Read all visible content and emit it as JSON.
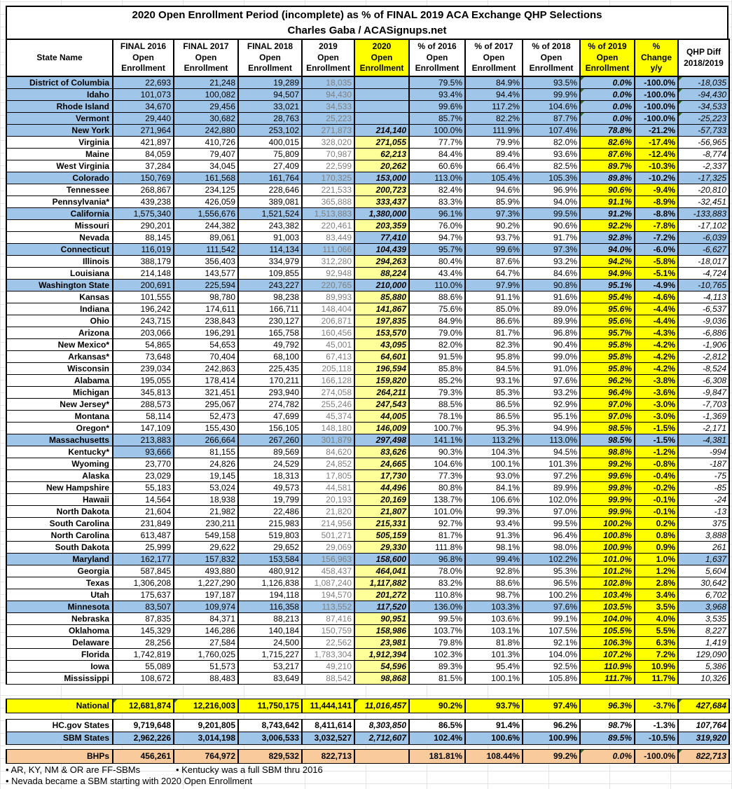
{
  "title": {
    "line1": "2020 Open Enrollment Period (incomplete) as % of FINAL 2019 ACA Exchange QHP Selections",
    "line2": "Charles Gaba / ACASignups.net"
  },
  "colors": {
    "sbm_blue": "#9FC5E8",
    "highlight_yellow": "#FFFF00",
    "light_yellow": "#FFFF99",
    "bhp_orange": "#F9CB9C",
    "error_triangle_green": "#2E6B1E",
    "muted_2019_text": "#7F7F7F"
  },
  "chart_data": {
    "type": "table",
    "columns": [
      {
        "label": "State Name",
        "hl": false
      },
      {
        "label": "FINAL 2016\nOpen\nEnrollment",
        "hl": false
      },
      {
        "label": "FINAL 2017\nOpen\nEnrollment",
        "hl": false
      },
      {
        "label": "FINAL 2018\nOpen\nEnrollment",
        "hl": false
      },
      {
        "label": "2019\nOpen\nEnrollment",
        "hl": false
      },
      {
        "label": "2020\nOpen\nEnrollment",
        "hl": true
      },
      {
        "label": "% of 2016\nOpen\nEnrollment",
        "hl": false
      },
      {
        "label": "% of 2017\nOpen\nEnrollment",
        "hl": false
      },
      {
        "label": "% of 2018\nOpen\nEnrollment",
        "hl": false
      },
      {
        "label": "% of 2019\nOpen\nEnrollment",
        "hl": true
      },
      {
        "label": "%\nChange\ny/y",
        "hl": true
      },
      {
        "label": "QHP Diff\n2018/2019",
        "hl": false
      }
    ],
    "rows": [
      {
        "state": "District of Columbia",
        "t": "b",
        "v": [
          "22,693",
          "21,248",
          "19,289",
          "18,035",
          "",
          "79.5%",
          "84.9%",
          "93.5%",
          "0.0%",
          "-100.0%",
          "-18,035"
        ],
        "tri": [
          8,
          10
        ]
      },
      {
        "state": "Idaho",
        "t": "b",
        "v": [
          "101,073",
          "100,082",
          "94,507",
          "94,430",
          "",
          "93.4%",
          "94.4%",
          "99.9%",
          "0.0%",
          "-100.0%",
          "-94,430"
        ],
        "tri": [
          8,
          10
        ]
      },
      {
        "state": "Rhode Island",
        "t": "b",
        "v": [
          "34,670",
          "29,456",
          "33,021",
          "34,533",
          "",
          "99.6%",
          "117.2%",
          "104.6%",
          "0.0%",
          "-100.0%",
          "-34,533"
        ],
        "tri": [
          8,
          10
        ]
      },
      {
        "state": "Vermont",
        "t": "b",
        "v": [
          "29,440",
          "30,682",
          "28,763",
          "25,223",
          "",
          "85.7%",
          "82.2%",
          "87.7%",
          "0.0%",
          "-100.0%",
          "-25,223"
        ],
        "tri": [
          8,
          10
        ]
      },
      {
        "state": "New York",
        "t": "b",
        "v": [
          "271,964",
          "242,880",
          "253,102",
          "271,873",
          "214,140",
          "100.0%",
          "111.9%",
          "107.4%",
          "78.8%",
          "-21.2%",
          "-57,733"
        ]
      },
      {
        "state": "Virginia",
        "t": "w",
        "v": [
          "421,897",
          "410,726",
          "400,015",
          "328,020",
          "271,055",
          "77.7%",
          "79.9%",
          "82.0%",
          "82.6%",
          "-17.4%",
          "-56,965"
        ]
      },
      {
        "state": "Maine",
        "t": "w",
        "v": [
          "84,059",
          "79,407",
          "75,809",
          "70,987",
          "62,213",
          "84.4%",
          "89.4%",
          "93.6%",
          "87.6%",
          "-12.4%",
          "-8,774"
        ]
      },
      {
        "state": "West Virginia",
        "t": "w",
        "v": [
          "37,284",
          "34,045",
          "27,409",
          "22,599",
          "20,262",
          "60.6%",
          "66.4%",
          "82.5%",
          "89.7%",
          "-10.3%",
          "-2,337"
        ]
      },
      {
        "state": "Colorado",
        "t": "b",
        "v": [
          "150,769",
          "161,568",
          "161,764",
          "170,325",
          "153,000",
          "113.0%",
          "105.4%",
          "105.3%",
          "89.8%",
          "-10.2%",
          "-17,325"
        ]
      },
      {
        "state": "Tennessee",
        "t": "w",
        "v": [
          "268,867",
          "234,125",
          "228,646",
          "221,533",
          "200,723",
          "82.4%",
          "94.6%",
          "96.9%",
          "90.6%",
          "-9.4%",
          "-20,810"
        ]
      },
      {
        "state": "Pennsylvania*",
        "t": "w",
        "v": [
          "439,238",
          "426,059",
          "389,081",
          "365,888",
          "333,437",
          "83.3%",
          "85.9%",
          "94.0%",
          "91.1%",
          "-8.9%",
          "-32,451"
        ]
      },
      {
        "state": "California",
        "t": "b",
        "v": [
          "1,575,340",
          "1,556,676",
          "1,521,524",
          "1,513,883",
          "1,380,000",
          "96.1%",
          "97.3%",
          "99.5%",
          "91.2%",
          "-8.8%",
          "-133,883"
        ]
      },
      {
        "state": "Missouri",
        "t": "w",
        "v": [
          "290,201",
          "244,382",
          "243,382",
          "220,461",
          "203,359",
          "76.0%",
          "90.2%",
          "90.6%",
          "92.2%",
          "-7.8%",
          "-17,102"
        ]
      },
      {
        "state": "Nevada",
        "t": "w",
        "bc": [
          4,
          8,
          9,
          10
        ],
        "v": [
          "88,145",
          "89,061",
          "91,003",
          "83,449",
          "77,410",
          "94.7%",
          "93.7%",
          "91.7%",
          "92.8%",
          "-7.2%",
          "-6,039"
        ]
      },
      {
        "state": "Connecticut",
        "t": "b",
        "v": [
          "116,019",
          "111,542",
          "114,134",
          "111,066",
          "104,439",
          "95.7%",
          "99.6%",
          "97.3%",
          "94.0%",
          "-6.0%",
          "-6,627"
        ]
      },
      {
        "state": "Illinois",
        "t": "w",
        "v": [
          "388,179",
          "356,403",
          "334,979",
          "312,280",
          "294,263",
          "80.4%",
          "87.6%",
          "93.2%",
          "94.2%",
          "-5.8%",
          "-18,017"
        ]
      },
      {
        "state": "Louisiana",
        "t": "w",
        "v": [
          "214,148",
          "143,577",
          "109,855",
          "92,948",
          "88,224",
          "43.4%",
          "64.7%",
          "84.6%",
          "94.9%",
          "-5.1%",
          "-4,724"
        ]
      },
      {
        "state": "Washington State",
        "t": "b",
        "v": [
          "200,691",
          "225,594",
          "243,227",
          "220,765",
          "210,000",
          "110.0%",
          "97.9%",
          "90.8%",
          "95.1%",
          "-4.9%",
          "-10,765"
        ]
      },
      {
        "state": "Kansas",
        "t": "w",
        "v": [
          "101,555",
          "98,780",
          "98,238",
          "89,993",
          "85,880",
          "88.6%",
          "91.1%",
          "91.6%",
          "95.4%",
          "-4.6%",
          "-4,113"
        ]
      },
      {
        "state": "Indiana",
        "t": "w",
        "v": [
          "196,242",
          "174,611",
          "166,711",
          "148,404",
          "141,867",
          "75.6%",
          "85.0%",
          "89.0%",
          "95.6%",
          "-4.4%",
          "-6,537"
        ]
      },
      {
        "state": "Ohio",
        "t": "w",
        "v": [
          "243,715",
          "238,843",
          "230,127",
          "206,871",
          "197,835",
          "84.9%",
          "86.6%",
          "89.9%",
          "95.6%",
          "-4.4%",
          "-9,036"
        ]
      },
      {
        "state": "Arizona",
        "t": "w",
        "v": [
          "203,066",
          "196,291",
          "165,758",
          "160,456",
          "153,570",
          "79.0%",
          "81.7%",
          "96.8%",
          "95.7%",
          "-4.3%",
          "-6,886"
        ]
      },
      {
        "state": "New Mexico*",
        "t": "w",
        "v": [
          "54,865",
          "54,653",
          "49,792",
          "45,001",
          "43,095",
          "82.0%",
          "82.3%",
          "90.4%",
          "95.8%",
          "-4.2%",
          "-1,906"
        ]
      },
      {
        "state": "Arkansas*",
        "t": "w",
        "v": [
          "73,648",
          "70,404",
          "68,100",
          "67,413",
          "64,601",
          "91.5%",
          "95.8%",
          "99.0%",
          "95.8%",
          "-4.2%",
          "-2,812"
        ]
      },
      {
        "state": "Wisconsin",
        "t": "w",
        "v": [
          "239,034",
          "242,863",
          "225,435",
          "205,118",
          "196,594",
          "85.8%",
          "84.5%",
          "91.0%",
          "95.8%",
          "-4.2%",
          "-8,524"
        ]
      },
      {
        "state": "Alabama",
        "t": "w",
        "v": [
          "195,055",
          "178,414",
          "170,211",
          "166,128",
          "159,820",
          "85.2%",
          "93.1%",
          "97.6%",
          "96.2%",
          "-3.8%",
          "-6,308"
        ]
      },
      {
        "state": "Michigan",
        "t": "w",
        "v": [
          "345,813",
          "321,451",
          "293,940",
          "274,058",
          "264,211",
          "79.3%",
          "85.3%",
          "93.2%",
          "96.4%",
          "-3.6%",
          "-9,847"
        ]
      },
      {
        "state": "New Jersey*",
        "t": "w",
        "v": [
          "288,573",
          "295,067",
          "274,782",
          "255,246",
          "247,543",
          "88.5%",
          "86.5%",
          "92.9%",
          "97.0%",
          "-3.0%",
          "-7,703"
        ]
      },
      {
        "state": "Montana",
        "t": "w",
        "v": [
          "58,114",
          "52,473",
          "47,699",
          "45,374",
          "44,005",
          "78.1%",
          "86.5%",
          "95.1%",
          "97.0%",
          "-3.0%",
          "-1,369"
        ]
      },
      {
        "state": "Oregon*",
        "t": "w",
        "v": [
          "147,109",
          "155,430",
          "156,105",
          "148,180",
          "146,009",
          "100.7%",
          "95.3%",
          "94.9%",
          "98.5%",
          "-1.5%",
          "-2,171"
        ]
      },
      {
        "state": "Massachusetts",
        "t": "b",
        "v": [
          "213,883",
          "266,664",
          "267,260",
          "301,879",
          "297,498",
          "141.1%",
          "113.2%",
          "113.0%",
          "98.5%",
          "-1.5%",
          "-4,381"
        ]
      },
      {
        "state": "Kentucky*",
        "t": "w",
        "bc": [
          0
        ],
        "v": [
          "93,666",
          "81,155",
          "89,569",
          "84,620",
          "83,626",
          "90.3%",
          "104.3%",
          "94.5%",
          "98.8%",
          "-1.2%",
          "-994"
        ]
      },
      {
        "state": "Wyoming",
        "t": "w",
        "v": [
          "23,770",
          "24,826",
          "24,529",
          "24,852",
          "24,665",
          "104.6%",
          "100.1%",
          "101.3%",
          "99.2%",
          "-0.8%",
          "-187"
        ]
      },
      {
        "state": "Alaska",
        "t": "w",
        "v": [
          "23,029",
          "19,145",
          "18,313",
          "17,805",
          "17,730",
          "77.3%",
          "93.0%",
          "97.2%",
          "99.6%",
          "-0.4%",
          "-75"
        ]
      },
      {
        "state": "New Hampshire",
        "t": "w",
        "v": [
          "55,183",
          "53,024",
          "49,573",
          "44,581",
          "44,496",
          "80.8%",
          "84.1%",
          "89.9%",
          "99.8%",
          "-0.2%",
          "-85"
        ]
      },
      {
        "state": "Hawaii",
        "t": "w",
        "v": [
          "14,564",
          "18,938",
          "19,799",
          "20,193",
          "20,169",
          "138.7%",
          "106.6%",
          "102.0%",
          "99.9%",
          "-0.1%",
          "-24"
        ]
      },
      {
        "state": "North Dakota",
        "t": "w",
        "v": [
          "21,604",
          "21,982",
          "22,486",
          "21,820",
          "21,807",
          "101.0%",
          "99.3%",
          "97.0%",
          "99.9%",
          "-0.1%",
          "-13"
        ]
      },
      {
        "state": "South Carolina",
        "t": "w",
        "v": [
          "231,849",
          "230,211",
          "215,983",
          "214,956",
          "215,331",
          "92.7%",
          "93.4%",
          "99.5%",
          "100.2%",
          "0.2%",
          "375"
        ]
      },
      {
        "state": "North Carolina",
        "t": "w",
        "v": [
          "613,487",
          "549,158",
          "519,803",
          "501,271",
          "505,159",
          "81.7%",
          "91.3%",
          "96.4%",
          "100.8%",
          "0.8%",
          "3,888"
        ]
      },
      {
        "state": "South Dakota",
        "t": "w",
        "v": [
          "25,999",
          "29,622",
          "29,652",
          "29,069",
          "29,330",
          "111.8%",
          "98.1%",
          "98.0%",
          "100.9%",
          "0.9%",
          "261"
        ]
      },
      {
        "state": "Maryland",
        "t": "b",
        "yp": true,
        "v": [
          "162,177",
          "157,832",
          "153,584",
          "156,963",
          "158,600",
          "96.8%",
          "99.4%",
          "102.2%",
          "101.0%",
          "1.0%",
          "1,637"
        ]
      },
      {
        "state": "Georgia",
        "t": "w",
        "v": [
          "587,845",
          "493,880",
          "480,912",
          "458,437",
          "464,041",
          "78.0%",
          "92.8%",
          "95.3%",
          "101.2%",
          "1.2%",
          "5,604"
        ]
      },
      {
        "state": "Texas",
        "t": "w",
        "v": [
          "1,306,208",
          "1,227,290",
          "1,126,838",
          "1,087,240",
          "1,117,882",
          "83.2%",
          "88.6%",
          "96.5%",
          "102.8%",
          "2.8%",
          "30,642"
        ]
      },
      {
        "state": "Utah",
        "t": "w",
        "v": [
          "175,637",
          "197,187",
          "194,118",
          "194,570",
          "201,272",
          "110.8%",
          "98.7%",
          "100.2%",
          "103.4%",
          "3.4%",
          "6,702"
        ]
      },
      {
        "state": "Minnesota",
        "t": "b",
        "yp": true,
        "v": [
          "83,507",
          "109,974",
          "116,358",
          "113,552",
          "117,520",
          "136.0%",
          "103.3%",
          "97.6%",
          "103.5%",
          "3.5%",
          "3,968"
        ]
      },
      {
        "state": "Nebraska",
        "t": "w",
        "v": [
          "87,835",
          "84,371",
          "88,213",
          "87,416",
          "90,951",
          "99.5%",
          "103.6%",
          "99.1%",
          "104.0%",
          "4.0%",
          "3,535"
        ]
      },
      {
        "state": "Oklahoma",
        "t": "w",
        "v": [
          "145,329",
          "146,286",
          "140,184",
          "150,759",
          "158,986",
          "103.7%",
          "103.1%",
          "107.5%",
          "105.5%",
          "5.5%",
          "8,227"
        ]
      },
      {
        "state": "Delaware",
        "t": "w",
        "v": [
          "28,256",
          "27,584",
          "24,500",
          "22,562",
          "23,981",
          "79.8%",
          "81.8%",
          "92.1%",
          "106.3%",
          "6.3%",
          "1,419"
        ]
      },
      {
        "state": "Florida",
        "t": "w",
        "v": [
          "1,742,819",
          "1,760,025",
          "1,715,227",
          "1,783,304",
          "1,912,394",
          "102.3%",
          "101.3%",
          "104.0%",
          "107.2%",
          "7.2%",
          "129,090"
        ]
      },
      {
        "state": "Iowa",
        "t": "w",
        "v": [
          "55,089",
          "51,573",
          "53,217",
          "49,210",
          "54,596",
          "89.3%",
          "95.4%",
          "92.5%",
          "110.9%",
          "10.9%",
          "5,386"
        ]
      },
      {
        "state": "Mississippi",
        "t": "w",
        "v": [
          "108,672",
          "88,483",
          "83,649",
          "88,542",
          "98,868",
          "81.5%",
          "100.1%",
          "105.8%",
          "111.7%",
          "11.7%",
          "10,326"
        ]
      }
    ],
    "summary": [
      {
        "label": "National",
        "t": "nat",
        "v": [
          "12,681,874",
          "12,216,003",
          "11,750,175",
          "11,444,141",
          "11,016,457",
          "90.2%",
          "93.7%",
          "97.4%",
          "96.3%",
          "-3.7%",
          "427,684"
        ],
        "tri": [
          0,
          1,
          4,
          10
        ]
      },
      {
        "label": "HC.gov States",
        "t": "hc",
        "v": [
          "9,719,648",
          "9,201,805",
          "8,743,642",
          "8,411,614",
          "8,303,850",
          "86.5%",
          "91.4%",
          "96.2%",
          "98.7%",
          "-1.3%",
          "107,764"
        ]
      },
      {
        "label": "SBM States",
        "t": "sbm",
        "v": [
          "2,962,226",
          "3,014,198",
          "3,006,533",
          "3,032,527",
          "2,712,607",
          "102.4%",
          "100.6%",
          "100.9%",
          "89.5%",
          "-10.5%",
          "319,920"
        ]
      },
      {
        "label": "BHPs",
        "t": "bhp",
        "v": [
          "456,261",
          "764,972",
          "829,532",
          "822,713",
          "",
          "181.81%",
          "108.44%",
          "99.2%",
          "0.0%",
          "-100.0%",
          "822,713"
        ],
        "tri": [
          8,
          10
        ]
      }
    ],
    "footnotes": {
      "line1a": "• AR, KY, NM & OR are FF-SBMs",
      "line1b": "• Kentucky was a full SBM thru 2016",
      "line2": "• Nevada became a SBM starting with 2020 Open Enrollment"
    }
  }
}
